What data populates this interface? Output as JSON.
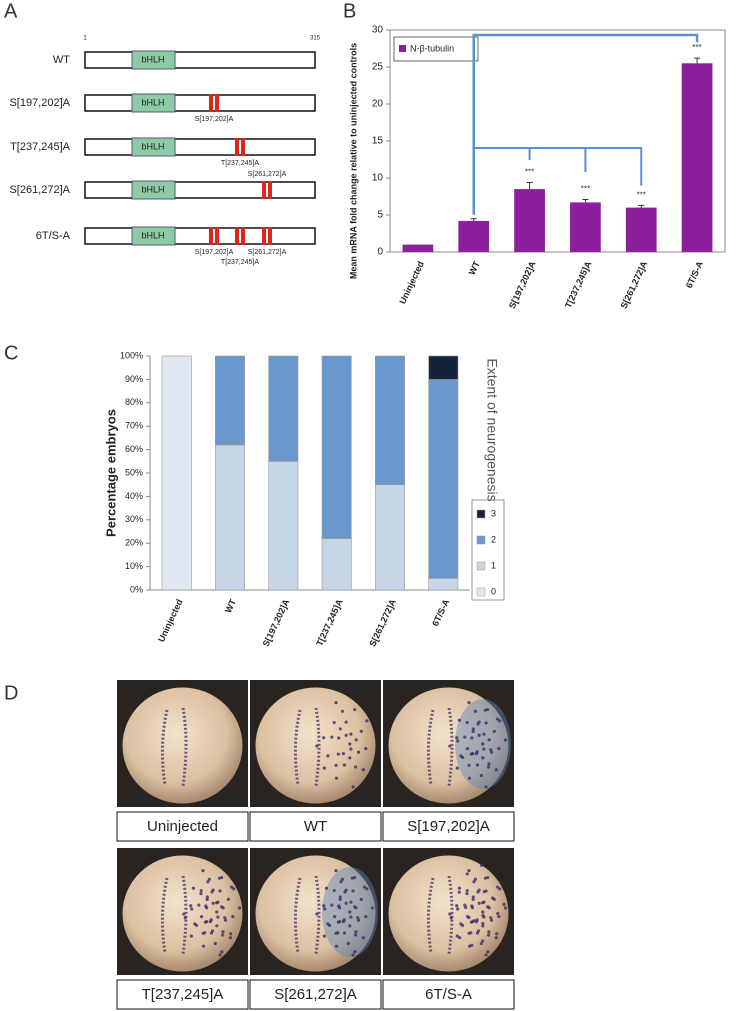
{
  "panel_a": {
    "label": "A",
    "scale_start": 1,
    "scale_end": 315,
    "constructs": [
      {
        "name": "WT",
        "domain": "bHLH",
        "sites": []
      },
      {
        "name": "S[197,202]A",
        "domain": "bHLH",
        "sites": [
          "S[197,202]A"
        ]
      },
      {
        "name": "T[237,245]A",
        "domain": "bHLH",
        "sites": [
          "T[237,245]A"
        ]
      },
      {
        "name": "S[261,272]A",
        "domain": "bHLH",
        "sites": [
          "S[261,272]A"
        ]
      },
      {
        "name": "6T/S-A",
        "domain": "bHLH",
        "sites": [
          "S[197,202]A",
          "T[237,245]A",
          "S[261,272]A"
        ]
      }
    ]
  },
  "panel_labels": {
    "b": "B",
    "c": "C",
    "d": "D"
  },
  "chart_data": [
    {
      "type": "bar",
      "y_label": "Mean mRNA fold change relative to uninjected controls",
      "categories": [
        "Uninjected",
        "WT",
        "S[197,202]A",
        "T[237,245]A",
        "S[261,272]A",
        "6T/S-A"
      ],
      "series": [
        {
          "name": "N-β-tubulin",
          "color": "#8b1f9c",
          "values": [
            1,
            4.2,
            8.5,
            6.7,
            6.0,
            25.5
          ],
          "errors": [
            0,
            0.3,
            0.9,
            0.4,
            0.3,
            0.7
          ]
        }
      ],
      "significance": [
        null,
        null,
        "***",
        "***",
        "***",
        "***"
      ],
      "ylim": [
        0,
        30
      ],
      "yticks": [
        0,
        5,
        10,
        15,
        20,
        25,
        30
      ],
      "grid": false
    },
    {
      "type": "stacked_bar",
      "y_label": "Percentage embryos",
      "legend_title": "Extent of neurogenesis",
      "categories": [
        "Uninjected",
        "WT",
        "S[197,202]A",
        "T[237,245]A",
        "S[261,272]A",
        "6T/S-A"
      ],
      "series": [
        {
          "name": "0",
          "color": "#e0e9f2",
          "values": [
            100,
            0,
            0,
            0,
            0,
            0
          ]
        },
        {
          "name": "1",
          "color": "#c6d6e6",
          "values": [
            0,
            62,
            55,
            22,
            45,
            5
          ]
        },
        {
          "name": "2",
          "color": "#6c97cd",
          "values": [
            0,
            38,
            45,
            78,
            55,
            85
          ]
        },
        {
          "name": "3",
          "color": "#14223a",
          "values": [
            0,
            0,
            0,
            0,
            0,
            10
          ]
        }
      ],
      "ylim": [
        0,
        100
      ],
      "yticks": [
        {
          "value": 0,
          "label": "0%"
        },
        {
          "value": 10,
          "label": "10%"
        },
        {
          "value": 20,
          "label": "20%"
        },
        {
          "value": 30,
          "label": "30%"
        },
        {
          "value": 40,
          "label": "40%"
        },
        {
          "value": 50,
          "label": "50%"
        },
        {
          "value": 60,
          "label": "60%"
        },
        {
          "value": 70,
          "label": "70%"
        },
        {
          "value": 80,
          "label": "80%"
        },
        {
          "value": 90,
          "label": "90%"
        },
        {
          "value": 100,
          "label": "100%"
        }
      ],
      "grid": false
    }
  ],
  "panel_d": {
    "images": [
      "Uninjected",
      "WT",
      "S[197,202]A",
      "T[237,245]A",
      "S[261,272]A",
      "6T/S-A"
    ]
  }
}
